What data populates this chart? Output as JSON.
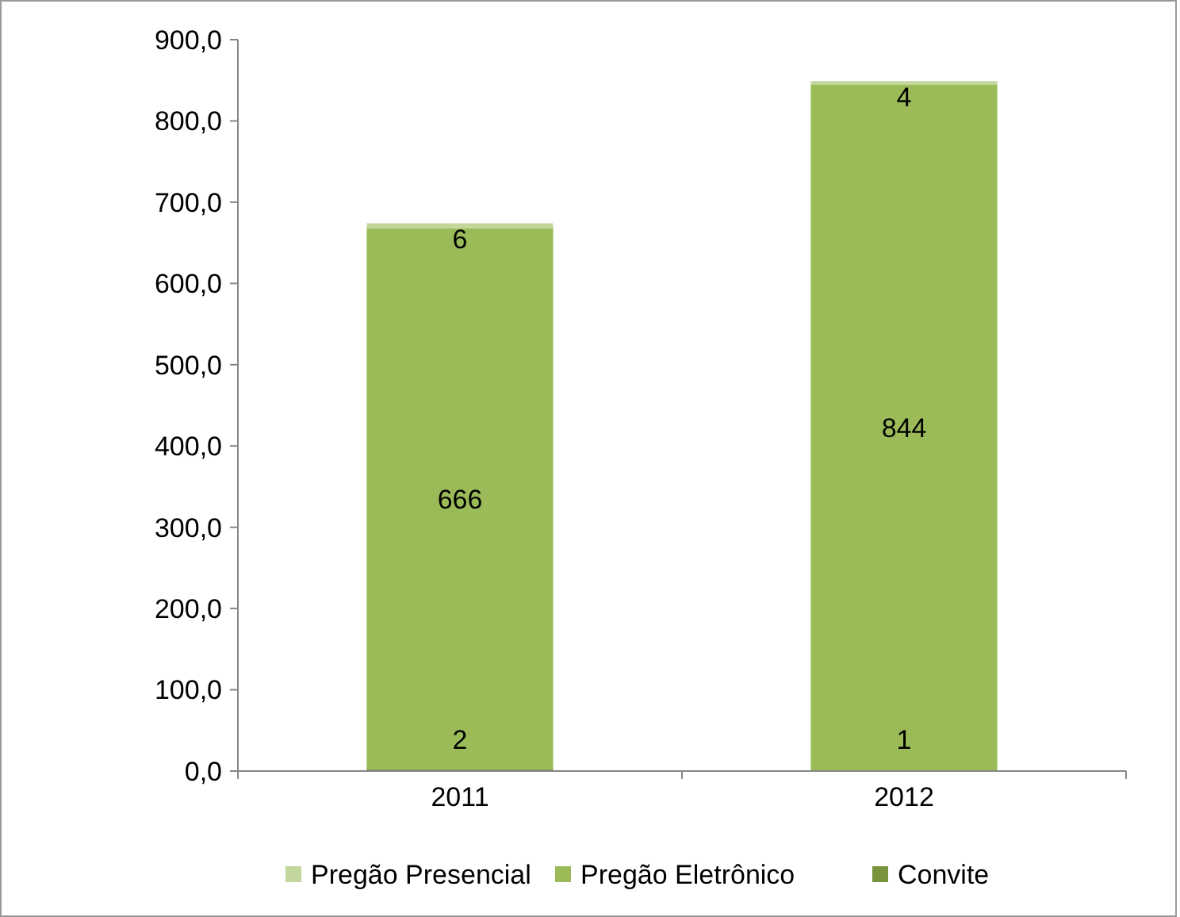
{
  "chart_data": {
    "type": "bar",
    "stacked": true,
    "categories": [
      "2011",
      "2012"
    ],
    "series": [
      {
        "name": "Convite",
        "color": "#77933c",
        "values": [
          2,
          1
        ]
      },
      {
        "name": "Pregão Eletrônico",
        "color": "#9bbb59",
        "values": [
          666,
          844
        ]
      },
      {
        "name": "Pregão Presencial",
        "color": "#c3d69b",
        "values": [
          6,
          4
        ]
      }
    ],
    "ylim": [
      0,
      900
    ],
    "yticks": [
      {
        "value": 0,
        "label": "0,0"
      },
      {
        "value": 100,
        "label": "100,0"
      },
      {
        "value": 200,
        "label": "200,0"
      },
      {
        "value": 300,
        "label": "300,0"
      },
      {
        "value": 400,
        "label": "400,0"
      },
      {
        "value": 500,
        "label": "500,0"
      },
      {
        "value": 600,
        "label": "600,0"
      },
      {
        "value": 700,
        "label": "700,0"
      },
      {
        "value": 800,
        "label": "800,0"
      },
      {
        "value": 900,
        "label": "900,0"
      }
    ],
    "data_labels": true,
    "legend": "bottom",
    "grid": false
  }
}
